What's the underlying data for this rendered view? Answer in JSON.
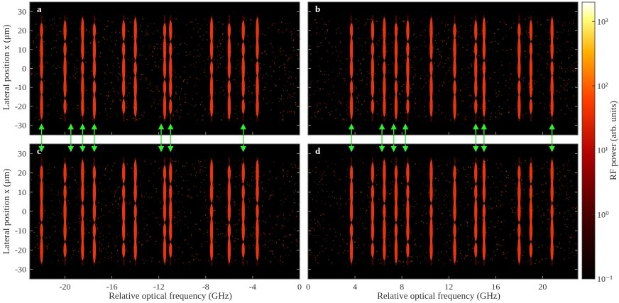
{
  "chart_data": {
    "type": "heatmap",
    "panels": [
      {
        "label": "a",
        "xlim": [
          -23,
          0
        ],
        "ylim": [
          -35,
          35
        ]
      },
      {
        "label": "b",
        "xlim": [
          0,
          23
        ],
        "ylim": [
          -35,
          35
        ]
      },
      {
        "label": "c",
        "xlim": [
          -23,
          0
        ],
        "ylim": [
          -35,
          35
        ]
      },
      {
        "label": "d",
        "xlim": [
          0,
          23
        ],
        "ylim": [
          -35,
          35
        ]
      }
    ],
    "ylabel": "Lateral position x (μm)",
    "xlabel": "Relative optical frequency (GHz)",
    "yticks": [
      30,
      20,
      10,
      0,
      -10,
      -20,
      -30
    ],
    "xticks_left": [
      -20,
      -16,
      -12,
      -8,
      -4,
      0
    ],
    "xticks_right": [
      0,
      4,
      8,
      12,
      16,
      20
    ],
    "colorbar": {
      "label": "RF power (arb. units)",
      "scale": "log",
      "range": [
        0.1,
        2000
      ],
      "ticks": [
        {
          "value": 1000,
          "label": "10³"
        },
        {
          "value": 100,
          "label": "10²"
        },
        {
          "value": 10,
          "label": "10¹"
        },
        {
          "value": 1,
          "label": "10⁰"
        },
        {
          "value": 0.1,
          "label": "10⁻¹"
        }
      ]
    },
    "strong_lines_left_ghz": [
      -22,
      -20,
      -18.5,
      -17.5,
      -15,
      -14,
      -11.5,
      -11,
      -7.5,
      -6,
      -4.8,
      -3.6
    ],
    "strong_lines_right_ghz": [
      3.7,
      5.5,
      6.5,
      7.5,
      8.5,
      10.5,
      12.5,
      14.3,
      15,
      18,
      19,
      20.8
    ],
    "arrows_left_ghz": [
      -22,
      -19.5,
      -18.5,
      -17.5,
      -11.8,
      -11,
      -4.8
    ],
    "arrows_right_ghz": [
      3.7,
      6.3,
      7.3,
      8.3,
      14.3,
      15,
      20.8
    ]
  }
}
